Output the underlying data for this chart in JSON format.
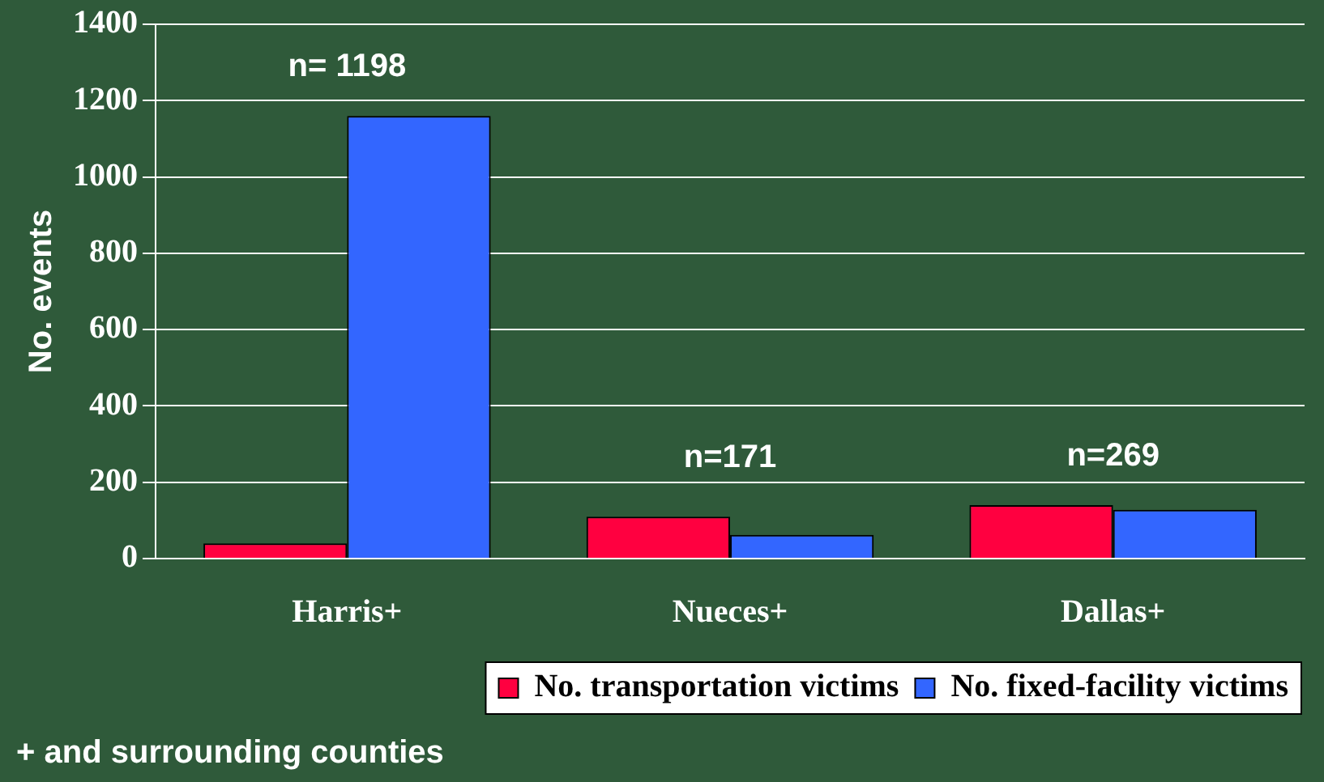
{
  "chart_data": {
    "type": "bar",
    "ylabel": "No. events",
    "categories": [
      "Harris+",
      "Nueces+",
      "Dallas+"
    ],
    "series": [
      {
        "name": "No. transportation victims",
        "color": "#ff0040",
        "values": [
          40,
          110,
          140
        ]
      },
      {
        "name": "No. fixed-facility victims",
        "color": "#3366ff",
        "values": [
          1160,
          62,
          128
        ]
      }
    ],
    "ylim": [
      0,
      1400
    ],
    "yticks": [
      0,
      200,
      400,
      600,
      800,
      1000,
      1200,
      1400
    ],
    "grid": "y",
    "legend": "bottom",
    "annotations": [
      "n= 1198",
      "n=171",
      "n=269",
      "+ and surrounding counties"
    ]
  }
}
